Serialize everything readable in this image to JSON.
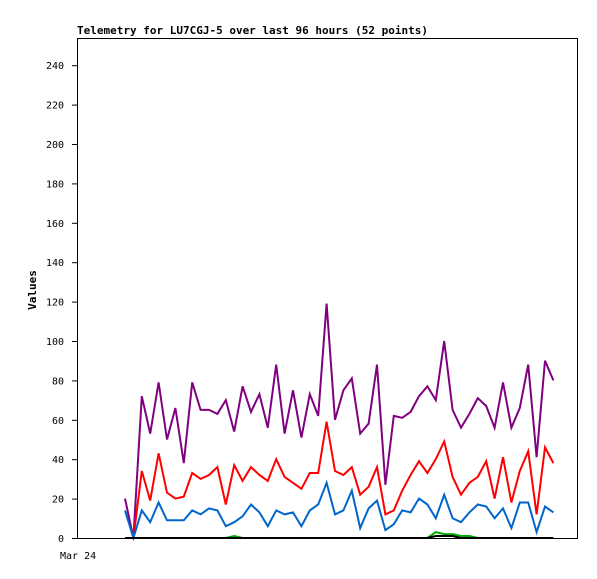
{
  "chart_data": {
    "type": "line",
    "title": "Telemetry for LU7CGJ-5 over last 96 hours (52 points)",
    "xlabel": "",
    "ylabel": "Values",
    "ylim": [
      0,
      255
    ],
    "yticks": [
      0,
      20,
      40,
      60,
      80,
      100,
      120,
      140,
      160,
      180,
      200,
      220,
      240
    ],
    "xticks": [
      "Mar 24"
    ],
    "grid": false,
    "legend": "none",
    "series": [
      {
        "color": "#800080",
        "values": [
          20,
          0,
          72,
          53,
          79,
          50,
          66,
          38,
          79,
          65,
          65,
          63,
          70,
          54,
          77,
          64,
          73,
          56,
          88,
          53,
          75,
          51,
          73,
          62,
          119,
          60,
          75,
          81,
          53,
          58,
          88,
          27,
          62,
          61,
          64,
          72,
          77,
          70,
          100,
          65,
          56,
          63,
          71,
          67,
          56,
          79,
          56,
          66,
          88,
          41,
          90,
          80
        ]
      },
      {
        "color": "#ff0000",
        "values": [
          0,
          0,
          34,
          19,
          43,
          23,
          20,
          21,
          33,
          30,
          32,
          36,
          17,
          37,
          29,
          36,
          32,
          29,
          40,
          31,
          28,
          25,
          33,
          33,
          59,
          34,
          32,
          36,
          22,
          26,
          36,
          12,
          14,
          24,
          32,
          39,
          33,
          40,
          49,
          31,
          22,
          28,
          31,
          39,
          20,
          41,
          18,
          34,
          44,
          12,
          46,
          38
        ]
      },
      {
        "color": "#0066cc",
        "values": [
          14,
          0,
          14,
          8,
          18,
          9,
          9,
          9,
          14,
          12,
          15,
          14,
          6,
          8,
          11,
          17,
          13,
          6,
          14,
          12,
          13,
          6,
          14,
          17,
          28,
          12,
          14,
          24,
          5,
          15,
          19,
          4,
          7,
          14,
          13,
          20,
          17,
          10,
          22,
          10,
          8,
          13,
          17,
          16,
          10,
          15,
          5,
          18,
          18,
          3,
          16,
          13
        ]
      },
      {
        "color": "#00aa00",
        "values": [
          0,
          0,
          0,
          0,
          0,
          0,
          0,
          0,
          0,
          0,
          0,
          0,
          0,
          1,
          0,
          0,
          0,
          0,
          0,
          0,
          0,
          0,
          0,
          0,
          0,
          0,
          0,
          0,
          0,
          0,
          0,
          0,
          0,
          0,
          0,
          0,
          0,
          3,
          2,
          2,
          1,
          1,
          0,
          0,
          0,
          0,
          0,
          0,
          0,
          0,
          0,
          0
        ]
      },
      {
        "color": "#000000",
        "values": [
          0,
          0,
          0,
          0,
          0,
          0,
          0,
          0,
          0,
          0,
          0,
          0,
          0,
          0,
          0,
          0,
          0,
          0,
          0,
          0,
          0,
          0,
          0,
          0,
          0,
          0,
          0,
          0,
          0,
          0,
          0,
          0,
          0,
          0,
          0,
          0,
          0,
          1,
          1,
          1,
          0,
          0,
          0,
          0,
          0,
          0,
          0,
          0,
          0,
          0,
          0,
          0
        ]
      }
    ]
  }
}
